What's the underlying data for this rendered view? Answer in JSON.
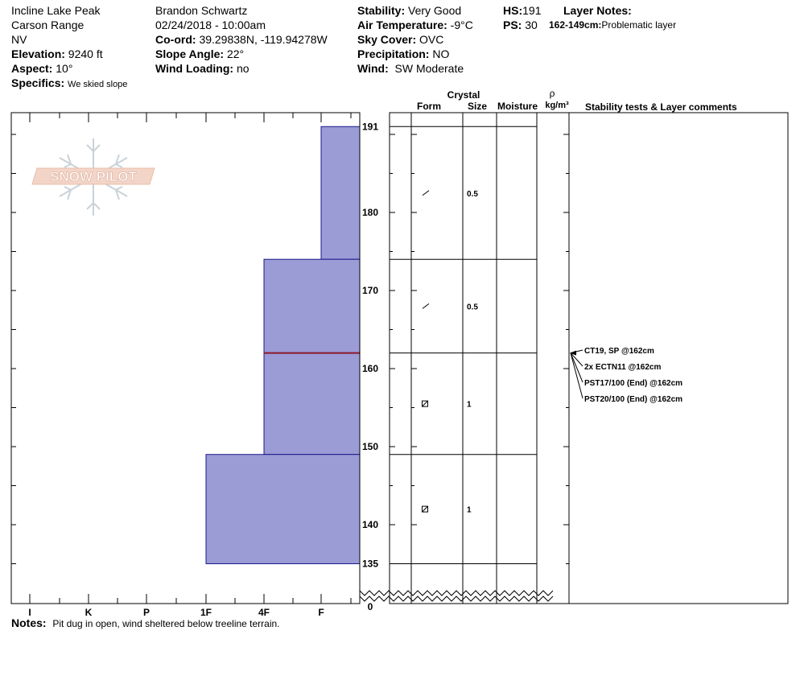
{
  "header": {
    "location": "Incline Lake Peak",
    "range": "Carson Range",
    "state": "NV",
    "elevation_label": "Elevation:",
    "elevation": "9240 ft",
    "aspect_label": "Aspect:",
    "aspect": "10°",
    "specifics_label": "Specifics:",
    "specifics": "We skied slope",
    "observer": "Brandon Schwartz",
    "datetime": "02/24/2018 - 10:00am",
    "coord_label": "Co-ord:",
    "coord": "39.29838N, -119.94278W",
    "slope_label": "Slope Angle:",
    "slope": "22°",
    "wind_loading_label": "Wind Loading:",
    "wind_loading": "no",
    "stability_label": "Stability:",
    "stability": "Very Good",
    "air_temp_label": "Air Temperature:",
    "air_temp": "-9°C",
    "sky_label": "Sky Cover:",
    "sky": "OVC",
    "precip_label": "Precipitation:",
    "precip": "NO",
    "wind_label": "Wind:",
    "wind": "SW Moderate",
    "hs_label": "HS:",
    "hs": "191",
    "ps_label": "PS:",
    "ps": "30",
    "layer_notes_label": "Layer Notes:",
    "layer_note_range": "162-149cm:",
    "layer_note_text": "Problematic layer"
  },
  "logo_text": "SNOW PILOT",
  "notes": {
    "label": "Notes:",
    "text": "Pit dug in open, wind sheltered below treeline terrain."
  },
  "columns": {
    "crystal": "Crystal",
    "form": "Form",
    "size": "Size",
    "moisture": "Moisture",
    "rho": "ρ",
    "density_unit": "kg/m³",
    "stability": "Stability tests & Layer comments"
  },
  "colors": {
    "layer_fill": "#9b9bd6",
    "layer_stroke": "#1a1a8c",
    "weak_layer": "#8b1a2a"
  },
  "chart_data": {
    "type": "snow-profile",
    "hardness_scale": [
      "I",
      "K",
      "P",
      "1F",
      "4F",
      "F"
    ],
    "height_ticks": [
      191,
      180,
      170,
      160,
      150,
      140,
      135,
      0
    ],
    "layers": [
      {
        "top": 191,
        "bottom": 174,
        "hardness": "F",
        "form": "decomposing",
        "size": "0.5"
      },
      {
        "top": 174,
        "bottom": 162,
        "hardness": "4F",
        "form": "decomposing",
        "size": "0.5"
      },
      {
        "top": 162,
        "bottom": 149,
        "hardness": "4F",
        "form": "faceted",
        "size": "1"
      },
      {
        "top": 149,
        "bottom": 135,
        "hardness": "1F",
        "form": "faceted",
        "size": "1"
      }
    ],
    "weak_layer_height": 162,
    "tests": [
      "CT19, SP @162cm",
      "2x ECTN11 @162cm",
      "PST17/100 (End) @162cm",
      "PST20/100 (End) @162cm"
    ]
  }
}
